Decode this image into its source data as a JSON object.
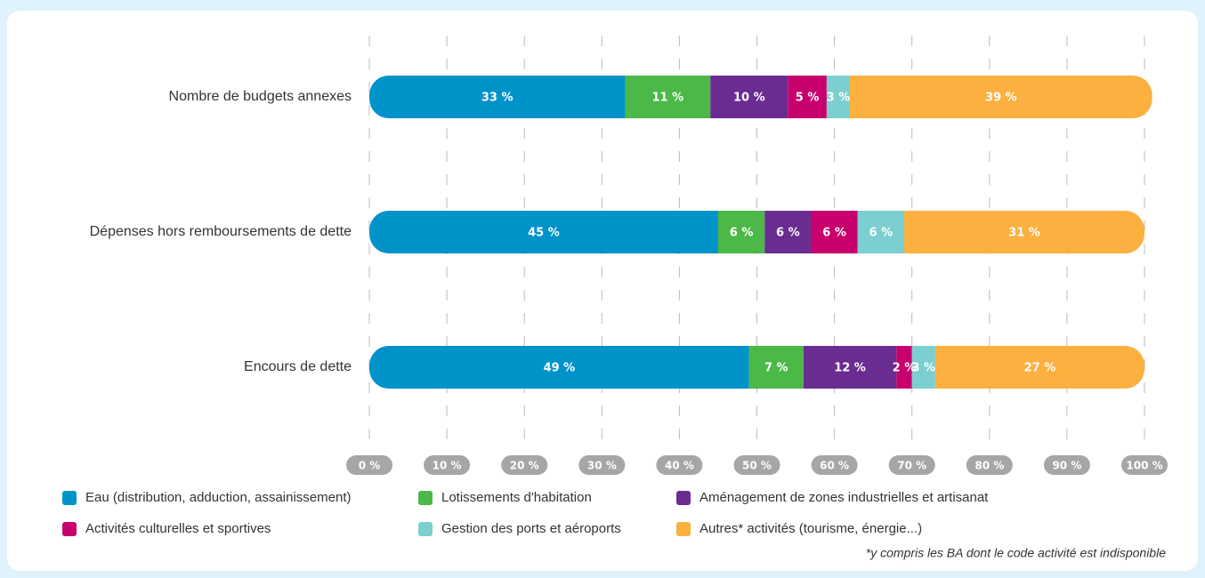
{
  "chart_data": {
    "type": "stacked-bar-horizontal",
    "categories": [
      "Nombre de budgets annexes",
      "Dépenses hors remboursements de dette",
      "Encours de dette"
    ],
    "series": [
      {
        "name": "Eau (distribution, adduction, assainissement)",
        "color": "#0093c9",
        "values": [
          33,
          45,
          49
        ],
        "value_labels": [
          "33 %",
          "45 %",
          "49 %"
        ]
      },
      {
        "name": "Lotissements d'habitation",
        "color": "#4cb848",
        "values": [
          11,
          6,
          7
        ],
        "value_labels": [
          "11 %",
          "6 %",
          "7 %"
        ]
      },
      {
        "name": "Aménagement de zones industrielles et artisanat",
        "color": "#6a2c91",
        "values": [
          10,
          6,
          12
        ],
        "value_labels": [
          "10 %",
          "6 %",
          "12 %"
        ]
      },
      {
        "name": "Activités culturelles et sportives",
        "color": "#c8006e",
        "values": [
          5,
          6,
          2
        ],
        "value_labels": [
          "5 %",
          "6 %",
          "2 %"
        ]
      },
      {
        "name": "Gestion des ports et aéroports",
        "color": "#7ccfcf",
        "values": [
          3,
          6,
          3
        ],
        "value_labels": [
          "3 %",
          "6 %",
          "3 %"
        ]
      },
      {
        "name": "Autres* activités (tourisme, énergie...)",
        "color": "#fbb040",
        "values": [
          39,
          31,
          27
        ],
        "value_labels": [
          "39 %",
          "31 %",
          "27 %"
        ]
      }
    ],
    "xlim": [
      0,
      100
    ],
    "xticks": [
      {
        "value": 0,
        "label": "0 %"
      },
      {
        "value": 10,
        "label": "10 %"
      },
      {
        "value": 20,
        "label": "20 %"
      },
      {
        "value": 30,
        "label": "30 %"
      },
      {
        "value": 40,
        "label": "40 %"
      },
      {
        "value": 50,
        "label": "50 %"
      },
      {
        "value": 60,
        "label": "60 %"
      },
      {
        "value": 70,
        "label": "70 %"
      },
      {
        "value": 80,
        "label": "80 %"
      },
      {
        "value": 90,
        "label": "90 %"
      },
      {
        "value": 100,
        "label": "100 %"
      }
    ],
    "grid": true,
    "footnote": "*y compris les BA dont le code activité est indisponible"
  }
}
